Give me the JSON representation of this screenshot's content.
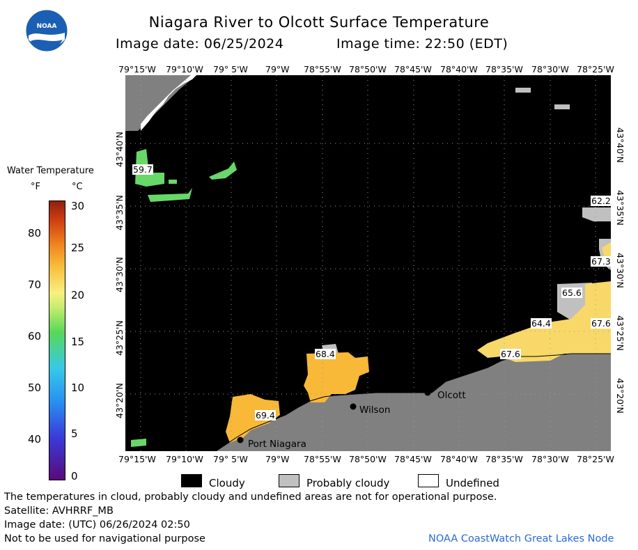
{
  "header": {
    "title": "Niagara River to Olcott Surface Temperature",
    "image_date": "Image date: 06/25/2024",
    "image_time": "Image time: 22:50 (EDT)"
  },
  "logo": {
    "text": "NOAA"
  },
  "axes": {
    "longitude_ticks": [
      "79°15'W",
      "79°10'W",
      "79° 5'W",
      "79°W",
      "78°55'W",
      "78°50'W",
      "78°45'W",
      "78°40'W",
      "78°35'W",
      "78°30'W",
      "78°25'W"
    ],
    "latitude_ticks": [
      "43°40'N",
      "43°35'N",
      "43°30'N",
      "43°25'N",
      "43°20'N"
    ]
  },
  "legend": {
    "title": "Water Temperature",
    "unit_f": "°F",
    "unit_c": "°C",
    "fahrenheit_labels": [
      "80",
      "70",
      "60",
      "50",
      "40"
    ],
    "celsius_labels": [
      "30",
      "25",
      "20",
      "15",
      "10",
      "5",
      "0"
    ],
    "colors": [
      "#5a0a7a",
      "#3a4ae0",
      "#38c8e8",
      "#58d858",
      "#f8f080",
      "#f8b030",
      "#e06010",
      "#a02010"
    ]
  },
  "map": {
    "temperature_labels": [
      "59.7",
      "68.4",
      "69.4",
      "67.6",
      "64.4",
      "65.6",
      "67.3",
      "67.6",
      "62.2"
    ],
    "places": [
      "Port Niagara",
      "Wilson",
      "Olcott"
    ],
    "colors": {
      "cloudy": "#000000",
      "land": "#808080",
      "probably_cloudy": "#c0c0c0",
      "undefined": "#ffffff",
      "warm_water": "#f8b838",
      "mild_water": "#f8d868",
      "cool_water": "#68d868"
    }
  },
  "key": {
    "cloudy": "Cloudy",
    "probably_cloudy": "Probably cloudy",
    "undefined": "Undefined"
  },
  "footer": {
    "disclaimer": "The temperatures in cloud, probably cloudy and undefined areas are not for operational purpose.",
    "satellite": "Satellite: AVHRRF_MB",
    "utc_date": "Image date: (UTC) 06/26/2024  02:50",
    "navigation": "Not to be used for navigational purpose",
    "credit": "NOAA CoastWatch Great Lakes Node"
  }
}
